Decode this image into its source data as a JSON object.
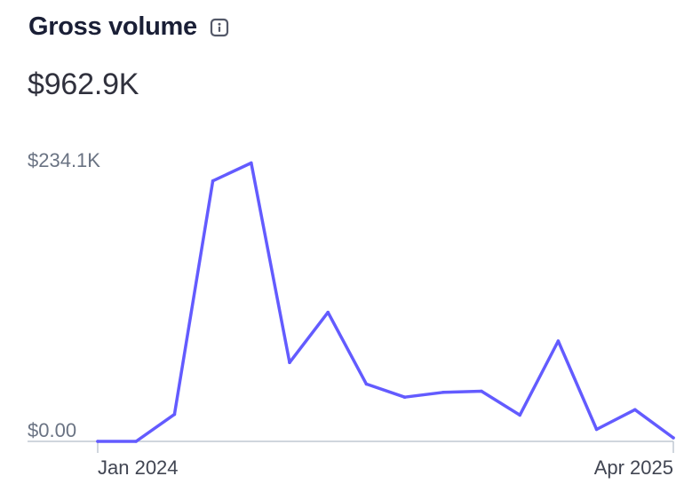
{
  "header": {
    "title": "Gross volume",
    "info_icon": "info-icon",
    "total": "$962.9K"
  },
  "colors": {
    "line": "#635bff",
    "baseline": "#c0c8d2",
    "text": "#1a1f36",
    "muted": "#6a7383"
  },
  "chart_data": {
    "type": "line",
    "title": "Gross volume",
    "xlabel": "",
    "ylabel": "",
    "x_tick_labels": [
      "Jan 2024",
      "Apr 2025"
    ],
    "y_tick_labels": [
      "$234.1K",
      "$0.00"
    ],
    "ylim": [
      0,
      234100
    ],
    "grid": false,
    "legend": "none",
    "x": [
      "2024-01",
      "2024-02",
      "2024-03",
      "2024-04",
      "2024-05",
      "2024-06",
      "2024-07",
      "2024-08",
      "2024-09",
      "2024-10",
      "2024-11",
      "2024-12",
      "2025-01",
      "2025-02",
      "2025-03",
      "2025-04"
    ],
    "series": [
      {
        "values": [
          0,
          0,
          22600,
          218000,
          233000,
          66000,
          108000,
          48000,
          37000,
          41000,
          42000,
          22000,
          84000,
          10000,
          26500,
          3000
        ]
      }
    ]
  }
}
